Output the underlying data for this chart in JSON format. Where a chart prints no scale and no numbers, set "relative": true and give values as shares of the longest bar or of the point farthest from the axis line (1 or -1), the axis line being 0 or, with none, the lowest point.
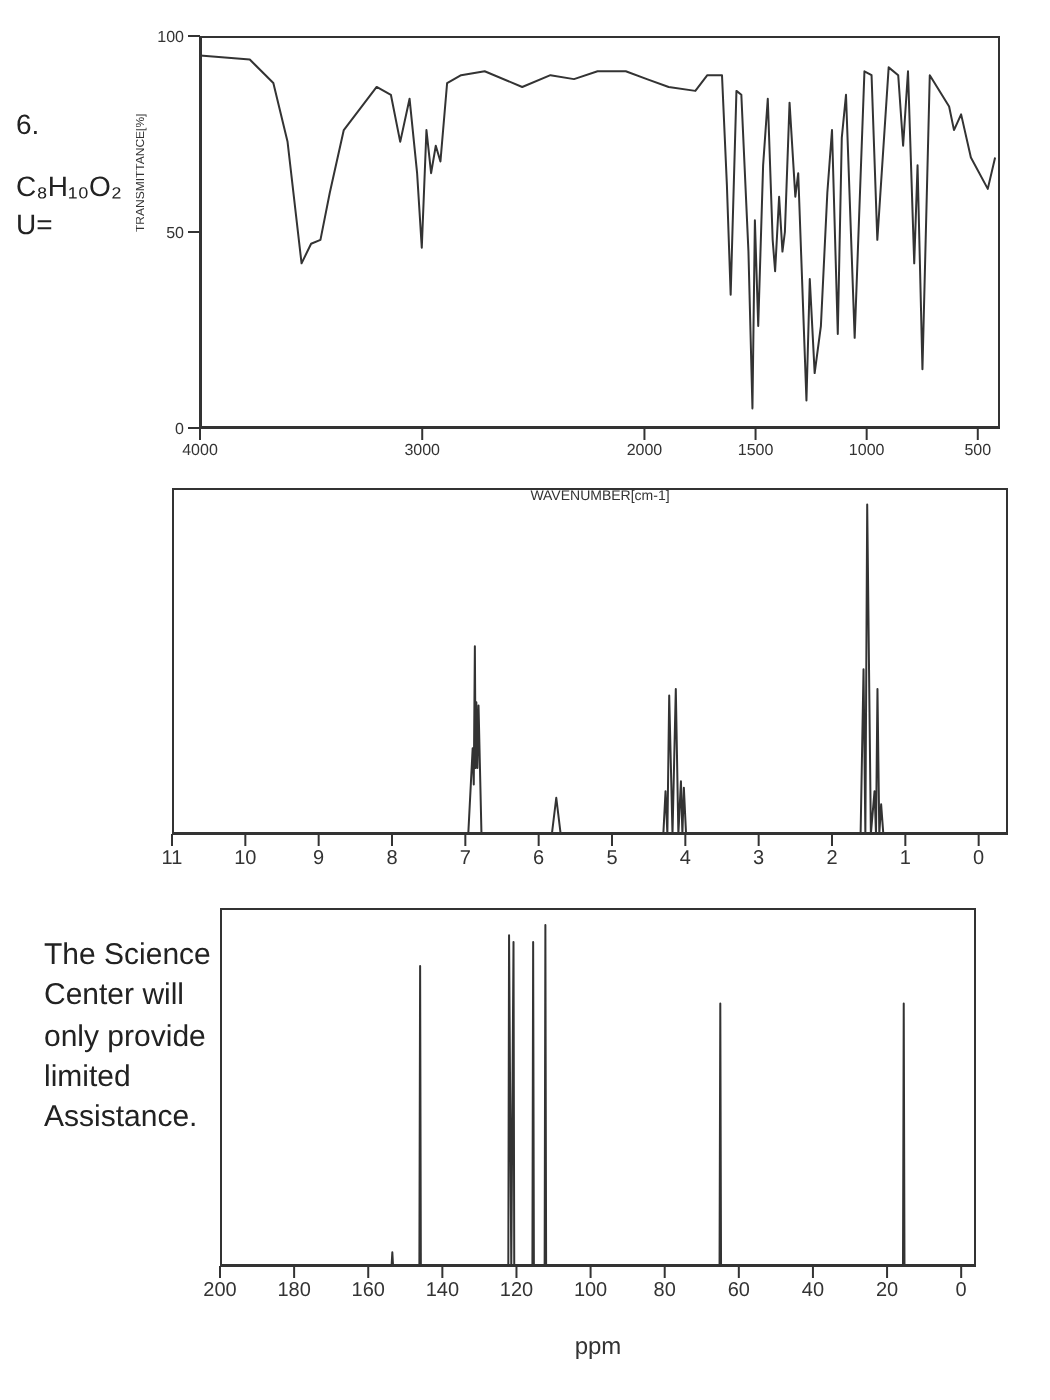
{
  "chart_data": [
    {
      "type": "line",
      "xlabel": "WAVENUMBER[cm-1]",
      "ylabel": "TRANSMITTANCE[%]",
      "annotations": [
        "6.",
        "C₈H₁₀O₂",
        "U="
      ],
      "xlim": [
        4000,
        400
      ],
      "xticks": [
        4000,
        3000,
        2000,
        1500,
        1000,
        500
      ],
      "ylim": [
        0,
        100
      ],
      "yticks": [
        0,
        50,
        100
      ],
      "marker": "none",
      "line_style": "solid",
      "series": [
        {
          "color": "#333333",
          "x": [
            4000,
            3776,
            3670,
            3606,
            3543,
            3500,
            3458,
            3416,
            3353,
            3205,
            3141,
            3099,
            3057,
            3023,
            3002,
            2981,
            2960,
            2939,
            2918,
            2888,
            2825,
            2719,
            2550,
            2423,
            2317,
            2211,
            2084,
            1989,
            1891,
            1771,
            1717,
            1651,
            1629,
            1612,
            1586,
            1564,
            1532,
            1514,
            1503,
            1488,
            1466,
            1445,
            1423,
            1412,
            1394,
            1379,
            1368,
            1347,
            1321,
            1308,
            1271,
            1256,
            1234,
            1206,
            1177,
            1156,
            1130,
            1112,
            1093,
            1054,
            1010,
            978,
            952,
            901,
            858,
            836,
            814,
            786,
            771,
            749,
            716,
            629,
            607,
            575,
            531,
            455,
            422
          ],
          "values": [
            95,
            94,
            88,
            73,
            42,
            47,
            48,
            60,
            76,
            87,
            85,
            73,
            84,
            65,
            46,
            76,
            65,
            72,
            68,
            88,
            90,
            91,
            87,
            90,
            89,
            91,
            91,
            89,
            87,
            86,
            90,
            90,
            62,
            34,
            86,
            85,
            45,
            5,
            53,
            26,
            67,
            84,
            48,
            40,
            59,
            45,
            50,
            83,
            59,
            65,
            7,
            38,
            14,
            26,
            60,
            76,
            24,
            74,
            85,
            23,
            91,
            90,
            48,
            92,
            90,
            72,
            91,
            42,
            67,
            15,
            90,
            82,
            76,
            80,
            69,
            61,
            69
          ]
        }
      ]
    },
    {
      "type": "line",
      "relative": true,
      "xlim": [
        11,
        -0.4
      ],
      "xticks": [
        11,
        10,
        9,
        8,
        7,
        6,
        5,
        4,
        3,
        2,
        1,
        0
      ],
      "marker": "none",
      "line_style": "solid",
      "series": [
        {
          "color": "#333333",
          "x": [
            11,
            6.96,
            6.9,
            6.885,
            6.87,
            6.86,
            6.85,
            6.835,
            6.82,
            6.78,
            5.82,
            5.76,
            5.7,
            4.3,
            4.27,
            4.245,
            4.22,
            4.175,
            4.13,
            4.095,
            4.06,
            4.04,
            4.02,
            3.99,
            1.61,
            1.57,
            1.545,
            1.52,
            1.47,
            1.42,
            1.4,
            1.38,
            1.355,
            1.33,
            1.3,
            -0.4
          ],
          "values": [
            0,
            0,
            0.26,
            0.15,
            0.57,
            0.2,
            0.4,
            0.2,
            0.39,
            0,
            0,
            0.11,
            0,
            0,
            0.13,
            0,
            0.42,
            0,
            0.44,
            0,
            0.16,
            0,
            0.14,
            0,
            0,
            0.5,
            0,
            1,
            0,
            0.13,
            0,
            0.44,
            0,
            0.09,
            0,
            0
          ]
        }
      ]
    },
    {
      "type": "line",
      "relative": true,
      "xlabel": "ppm",
      "annotations": [
        "The Science Center will only provide limited Assistance."
      ],
      "xlim": [
        200,
        -4
      ],
      "xticks": [
        200,
        180,
        160,
        140,
        120,
        100,
        80,
        60,
        40,
        20,
        0
      ],
      "marker": "none",
      "line_style": "solid",
      "series": [
        {
          "color": "#333333",
          "x": [
            200,
            153.7,
            153.5,
            153.3,
            146.2,
            146,
            145.8,
            122.2,
            122,
            121.4,
            120.8,
            120.6,
            115.7,
            115.5,
            115.3,
            112.4,
            112.2,
            112,
            65.2,
            65,
            64.8,
            15.7,
            15.5,
            15.3,
            -4
          ],
          "values": [
            0,
            0,
            0.04,
            0,
            0,
            0.88,
            0,
            0,
            0.97,
            0,
            0.95,
            0,
            0,
            0.95,
            0,
            0,
            1,
            0,
            0,
            0.77,
            0,
            0,
            0.77,
            0,
            0
          ]
        }
      ]
    }
  ]
}
